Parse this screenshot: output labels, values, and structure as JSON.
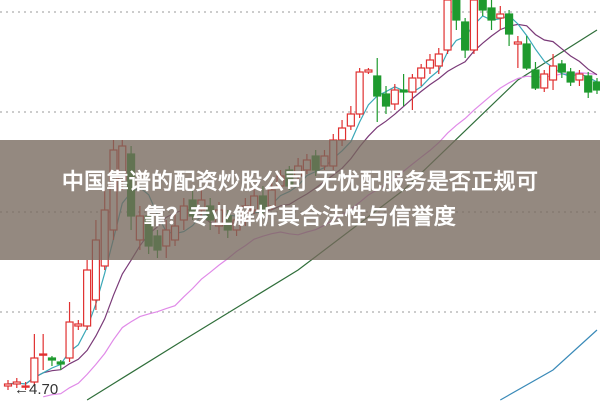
{
  "title": {
    "line1": "中国靠谱的配资炒股公司 无忧配服务是否正规可",
    "line2": "靠？专业解析其合法性与信誉度"
  },
  "chart_data": {
    "type": "candlestick",
    "price_label": "←4.70",
    "grid": true,
    "grid_levels": [
      6.59,
      6.09,
      5.59,
      5.09
    ],
    "colors": {
      "up": "#e03030",
      "down": "#1e9a2e",
      "ma5": "#3aa8b8",
      "ma10": "#7a3a78",
      "ma20": "#e08ae8",
      "long1": "#2f6e3a",
      "long2": "#3a8ab8",
      "grid": "#999999"
    },
    "candles": [
      [
        4.72,
        4.73,
        4.75,
        4.7
      ],
      [
        4.73,
        4.74,
        4.76,
        4.71
      ],
      [
        4.72,
        4.72,
        4.74,
        4.7
      ],
      [
        4.74,
        4.86,
        4.98,
        4.72
      ],
      [
        4.88,
        4.88,
        4.98,
        4.8
      ],
      [
        4.86,
        4.85,
        4.87,
        4.82
      ],
      [
        4.84,
        4.83,
        4.85,
        4.8
      ],
      [
        4.86,
        5.04,
        5.14,
        4.84
      ],
      [
        5.02,
        5.03,
        5.05,
        5.0
      ],
      [
        5.02,
        5.3,
        5.35,
        5.0
      ],
      [
        5.15,
        5.45,
        5.55,
        5.1
      ],
      [
        5.32,
        5.6,
        5.7,
        5.3
      ],
      [
        5.5,
        5.9,
        5.95,
        5.45
      ],
      [
        5.75,
        5.92,
        5.95,
        5.7
      ],
      [
        5.88,
        5.57,
        5.92,
        5.5
      ],
      [
        5.45,
        5.57,
        5.62,
        5.4
      ],
      [
        5.57,
        5.42,
        5.6,
        5.38
      ],
      [
        5.47,
        5.4,
        5.5,
        5.36
      ],
      [
        5.42,
        5.5,
        5.55,
        5.36
      ],
      [
        5.45,
        5.52,
        5.58,
        5.42
      ],
      [
        5.55,
        5.62,
        5.66,
        5.5
      ],
      [
        5.65,
        5.57,
        5.7,
        5.55
      ],
      [
        5.6,
        5.65,
        5.7,
        5.57
      ],
      [
        5.62,
        5.55,
        5.66,
        5.5
      ],
      [
        5.52,
        5.6,
        5.64,
        5.48
      ],
      [
        5.57,
        5.5,
        5.6,
        5.46
      ],
      [
        5.5,
        5.55,
        5.6,
        5.47
      ],
      [
        5.55,
        5.62,
        5.66,
        5.52
      ],
      [
        5.6,
        5.67,
        5.72,
        5.58
      ],
      [
        5.67,
        5.6,
        5.72,
        5.58
      ],
      [
        5.62,
        5.7,
        5.75,
        5.6
      ],
      [
        5.72,
        5.77,
        5.8,
        5.7
      ],
      [
        5.8,
        5.72,
        5.82,
        5.7
      ],
      [
        5.77,
        5.82,
        5.86,
        5.75
      ],
      [
        5.8,
        5.85,
        5.88,
        5.78
      ],
      [
        5.87,
        5.8,
        5.9,
        5.77
      ],
      [
        5.82,
        5.87,
        5.9,
        5.8
      ],
      [
        5.82,
        5.95,
        5.98,
        5.8
      ],
      [
        5.95,
        6.01,
        6.05,
        5.92
      ],
      [
        6.02,
        6.08,
        6.12,
        6.0
      ],
      [
        6.08,
        6.29,
        6.31,
        6.06
      ],
      [
        6.29,
        6.3,
        6.31,
        6.28
      ],
      [
        6.27,
        6.17,
        6.36,
        6.04
      ],
      [
        6.18,
        6.12,
        6.22,
        6.08
      ],
      [
        6.13,
        6.2,
        6.23,
        6.1
      ],
      [
        6.2,
        6.19,
        6.28,
        6.12
      ],
      [
        6.19,
        6.26,
        6.28,
        6.1
      ],
      [
        6.26,
        6.31,
        6.33,
        6.22
      ],
      [
        6.31,
        6.35,
        6.38,
        6.28
      ],
      [
        6.32,
        6.38,
        6.41,
        6.28
      ],
      [
        6.4,
        6.65,
        6.65,
        6.38
      ],
      [
        6.65,
        6.55,
        6.65,
        6.5
      ],
      [
        6.54,
        6.4,
        6.56,
        6.36
      ],
      [
        6.4,
        6.65,
        6.65,
        6.38
      ],
      [
        6.65,
        6.6,
        6.65,
        6.57
      ],
      [
        6.61,
        6.55,
        6.65,
        6.5
      ],
      [
        6.56,
        6.58,
        6.62,
        6.5
      ],
      [
        6.58,
        6.48,
        6.6,
        6.42
      ],
      [
        6.43,
        6.44,
        6.47,
        6.31
      ],
      [
        6.43,
        6.31,
        6.47,
        6.3
      ],
      [
        6.3,
        6.21,
        6.34,
        6.2
      ],
      [
        6.21,
        6.28,
        6.3,
        6.19
      ],
      [
        6.25,
        6.32,
        6.38,
        6.2
      ],
      [
        6.33,
        6.29,
        6.35,
        6.26
      ],
      [
        6.29,
        6.24,
        6.31,
        6.22
      ],
      [
        6.25,
        6.28,
        6.3,
        6.22
      ],
      [
        6.27,
        6.19,
        6.29,
        6.16
      ],
      [
        6.24,
        6.2,
        6.26,
        6.18
      ]
    ],
    "long_lines": [
      {
        "key": "long1",
        "points": [
          [
            9,
            4.65
          ],
          [
            20,
            4.95
          ],
          [
            33,
            5.3
          ],
          [
            45,
            5.7
          ],
          [
            58,
            6.25
          ],
          [
            67,
            6.5
          ]
        ]
      },
      {
        "key": "long2",
        "points": [
          [
            56,
            4.65
          ],
          [
            62,
            4.8
          ],
          [
            67,
            5.0
          ]
        ]
      }
    ]
  }
}
